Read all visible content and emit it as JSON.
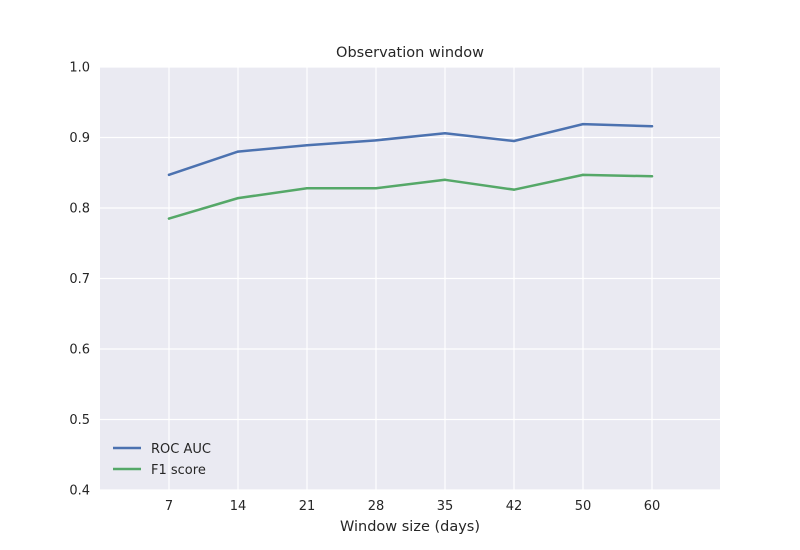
{
  "chart_data": {
    "type": "line",
    "title": "Observation window",
    "xlabel": "Window size (days)",
    "ylabel": "",
    "x_categories": [
      "7",
      "14",
      "21",
      "28",
      "35",
      "42",
      "50",
      "60"
    ],
    "ylim": [
      0.4,
      1.0
    ],
    "yticks": [
      "0.4",
      "0.5",
      "0.6",
      "0.7",
      "0.8",
      "0.9",
      "1.0"
    ],
    "grid": true,
    "legend_position": "lower-left",
    "style": {
      "plot_background": "#EAEAF2",
      "grid_color": "#FFFFFF"
    },
    "series": [
      {
        "name": "ROC AUC",
        "color": "#4C72B0",
        "values": [
          0.847,
          0.88,
          0.889,
          0.896,
          0.906,
          0.895,
          0.919,
          0.916
        ]
      },
      {
        "name": "F1 score",
        "color": "#55A868",
        "values": [
          0.785,
          0.814,
          0.828,
          0.828,
          0.84,
          0.826,
          0.847,
          0.845
        ]
      }
    ]
  }
}
